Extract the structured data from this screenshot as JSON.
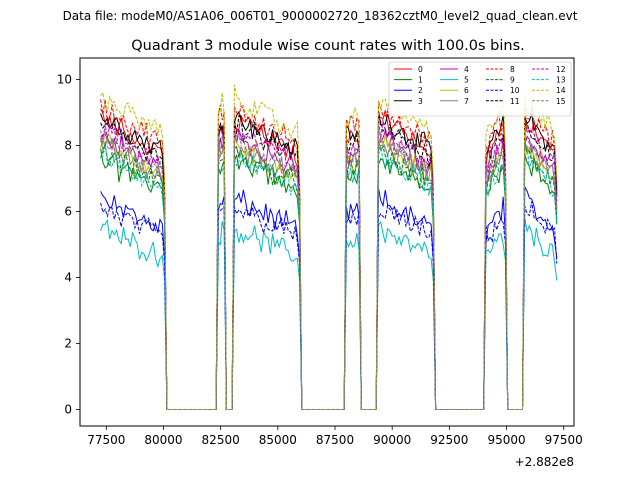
{
  "suptitle": "Data file: modeM0/AS1A06_006T01_9000002720_18362cztM0_level2_quad_clean.evt",
  "chart_data": {
    "type": "line",
    "title": "Quadrant 3 module wise count rates with 100.0s bins.",
    "xlabel": "",
    "ylabel": "",
    "x_offset_label": "+2.882e8",
    "xlim": [
      76350,
      97950
    ],
    "ylim": [
      -0.5,
      10.65
    ],
    "x_ticks": [
      77500,
      80000,
      82500,
      85000,
      87500,
      90000,
      92500,
      95000,
      97500
    ],
    "x_tick_labels": [
      "77500",
      "80000",
      "82500",
      "85000",
      "87500",
      "90000",
      "92500",
      "95000",
      "97500"
    ],
    "y_ticks": [
      0,
      2,
      4,
      6,
      8,
      10
    ],
    "y_tick_labels": [
      "0",
      "2",
      "4",
      "6",
      "8",
      "10"
    ],
    "legend_position": "top-right",
    "segments": [
      {
        "x_start": 77250,
        "x_end": 80050,
        "shape": "decline"
      },
      {
        "x_start": 82400,
        "x_end": 82650,
        "shape": "spike"
      },
      {
        "x_start": 83100,
        "x_end": 85950,
        "shape": "decline"
      },
      {
        "x_start": 88000,
        "x_end": 88550,
        "shape": "flat"
      },
      {
        "x_start": 89400,
        "x_end": 91800,
        "shape": "decline"
      },
      {
        "x_start": 94100,
        "x_end": 94950,
        "shape": "rise"
      },
      {
        "x_start": 95800,
        "x_end": 97200,
        "shape": "decline"
      }
    ],
    "gap_value": 0,
    "series": [
      {
        "name": "0",
        "color": "#ff0000",
        "dash": "solid",
        "start": 8.9,
        "end": 7.6
      },
      {
        "name": "1",
        "color": "#008000",
        "dash": "solid",
        "start": 7.6,
        "end": 6.6
      },
      {
        "name": "2",
        "color": "#0000ff",
        "dash": "solid",
        "start": 6.4,
        "end": 5.4
      },
      {
        "name": "3",
        "color": "#000000",
        "dash": "solid",
        "start": 8.9,
        "end": 7.8
      },
      {
        "name": "4",
        "color": "#bf00bf",
        "dash": "solid",
        "start": 8.3,
        "end": 7.2
      },
      {
        "name": "5",
        "color": "#00bfbf",
        "dash": "solid",
        "start": 5.5,
        "end": 4.6
      },
      {
        "name": "6",
        "color": "#bfbf00",
        "dash": "solid",
        "start": 8.1,
        "end": 7.0
      },
      {
        "name": "7",
        "color": "#808080",
        "dash": "solid",
        "start": 8.0,
        "end": 7.0
      },
      {
        "name": "8",
        "color": "#ff0000",
        "dash": "dashed",
        "start": 9.2,
        "end": 8.0
      },
      {
        "name": "9",
        "color": "#008000",
        "dash": "dashed",
        "start": 7.8,
        "end": 6.8
      },
      {
        "name": "10",
        "color": "#0000ff",
        "dash": "dashed",
        "start": 6.1,
        "end": 5.2
      },
      {
        "name": "11",
        "color": "#000000",
        "dash": "dashed",
        "start": 8.6,
        "end": 7.6
      },
      {
        "name": "12",
        "color": "#bf00bf",
        "dash": "dashed",
        "start": 8.5,
        "end": 7.4
      },
      {
        "name": "13",
        "color": "#00bfbf",
        "dash": "dashed",
        "start": 7.7,
        "end": 6.7
      },
      {
        "name": "14",
        "color": "#bfbf00",
        "dash": "dashed",
        "start": 9.5,
        "end": 8.3
      },
      {
        "name": "15",
        "color": "#808080",
        "dash": "dashed",
        "start": 8.2,
        "end": 7.2
      }
    ]
  }
}
